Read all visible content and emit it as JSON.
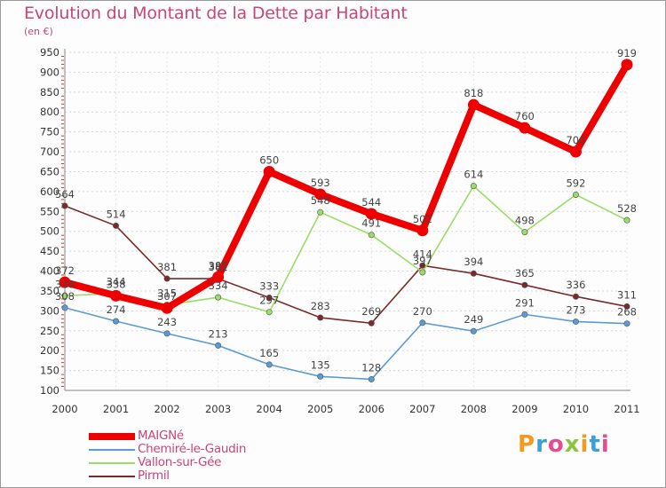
{
  "title": "Evolution du Montant de la Dette par Habitant",
  "subtitle": "(en €)",
  "logo": {
    "text": "Proxiti",
    "letters": [
      {
        "ch": "P",
        "color": "#f39b1f"
      },
      {
        "ch": "r",
        "color": "#3aa0d8"
      },
      {
        "ch": "o",
        "color": "#e84c8b"
      },
      {
        "ch": "x",
        "color": "#8cc63f"
      },
      {
        "ch": "i",
        "color": "#f39b1f"
      },
      {
        "ch": "t",
        "color": "#3aa0d8"
      },
      {
        "ch": "i",
        "color": "#e84c8b"
      }
    ]
  },
  "chart_data": {
    "type": "line",
    "title": "Evolution du Montant de la Dette par Habitant",
    "ylabel": "(en €)",
    "xlabel": "",
    "ylim": [
      100,
      950
    ],
    "ytick_step": 50,
    "grid": "horizontal dashed",
    "legend_placement": "bottom-left",
    "x": [
      "2000",
      "2001",
      "2002",
      "2003",
      "2004",
      "2005",
      "2006",
      "2007",
      "2008",
      "2009",
      "2010",
      "2011"
    ],
    "series": [
      {
        "name": "MAIGNé",
        "color": "#ee0000",
        "values": [
          372,
          338,
          307,
          385,
          650,
          593,
          544,
          502,
          818,
          760,
          700,
          919
        ]
      },
      {
        "name": "Chemiré-le-Gaudin",
        "color": "#5b9bd5",
        "values": [
          308,
          274,
          243,
          213,
          165,
          135,
          128,
          270,
          249,
          291,
          273,
          268
        ]
      },
      {
        "name": "Vallon-sur-Gée",
        "color": "#99dd66",
        "values": [
          338,
          344,
          315,
          334,
          297,
          548,
          491,
          397,
          614,
          498,
          592,
          528
        ]
      },
      {
        "name": "Pirmil",
        "color": "#7a2a2a",
        "values": [
          564,
          514,
          381,
          381,
          333,
          283,
          269,
          414,
          394,
          365,
          336,
          311
        ]
      }
    ]
  }
}
